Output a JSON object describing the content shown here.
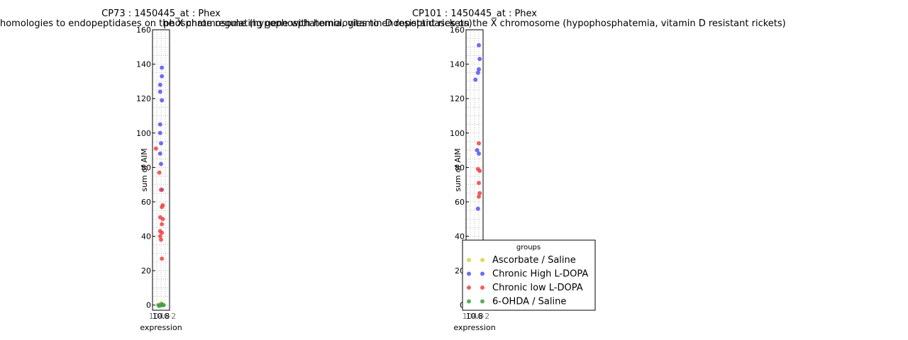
{
  "colors": {
    "Ascorbate / Saline": "#d6d640",
    "Chronic High L-DOPA": "#5555ee",
    "Chronic low L-DOPA": "#ee4444",
    "6-OHDA / Saline": "#44a044"
  },
  "legend": {
    "title": "groups",
    "entries": [
      "Ascorbate / Saline",
      "Chronic High L-DOPA",
      "Chronic low L-DOPA",
      "6-OHDA / Saline"
    ],
    "placement": "lower-right of second panel"
  },
  "chart_data": [
    {
      "type": "scatter",
      "title": "CP73 : 1450445_at : Phex",
      "subtitle": "phosphate regulating gene with homologies to endopeptidases on the X chromosome (hypophosphatemia, vitamin D resistant rickets)",
      "xlabel": "expression",
      "ylabel": "sum of AIM",
      "ylim": [
        -3,
        160
      ],
      "yticks": [
        0,
        20,
        40,
        60,
        80,
        100,
        120,
        140,
        160
      ],
      "xtick_text": "10.8",
      "xtick_text_overlap": "1046·2",
      "grid": true,
      "series": [
        {
          "name": "Chronic High L-DOPA",
          "points": [
            [
              0.55,
              138
            ],
            [
              0.55,
              133
            ],
            [
              0.45,
              128
            ],
            [
              0.45,
              124
            ],
            [
              0.55,
              119
            ],
            [
              0.45,
              105
            ],
            [
              0.45,
              100
            ],
            [
              0.5,
              94
            ],
            [
              0.45,
              88
            ],
            [
              0.5,
              82
            ],
            [
              0.55,
              67
            ]
          ]
        },
        {
          "name": "Chronic low L-DOPA",
          "points": [
            [
              0.2,
              91
            ],
            [
              0.4,
              77
            ],
            [
              0.5,
              67
            ],
            [
              0.6,
              58
            ],
            [
              0.55,
              57
            ],
            [
              0.45,
              51
            ],
            [
              0.6,
              50
            ],
            [
              0.55,
              47
            ],
            [
              0.45,
              43
            ],
            [
              0.55,
              42
            ],
            [
              0.45,
              40
            ],
            [
              0.5,
              38
            ],
            [
              0.55,
              27
            ]
          ]
        },
        {
          "name": "Ascorbate / Saline",
          "points": [
            [
              0.45,
              0
            ],
            [
              0.55,
              0
            ],
            [
              0.5,
              1
            ]
          ]
        },
        {
          "name": "6-OHDA / Saline",
          "points": [
            [
              0.35,
              0
            ],
            [
              0.5,
              0
            ],
            [
              0.6,
              0
            ],
            [
              0.4,
              -0.5
            ],
            [
              0.55,
              0.5
            ],
            [
              0.65,
              0
            ]
          ]
        }
      ]
    },
    {
      "type": "scatter",
      "title": "CP101 : 1450445_at : Phex",
      "subtitle": "phosphate regulating gene with homologies to endopeptidases on the X chromosome (hypophosphatemia, vitamin D resistant rickets)",
      "xlabel": "expression",
      "ylabel": "sum of AIM",
      "ylim": [
        -3,
        160
      ],
      "yticks": [
        0,
        20,
        40,
        60,
        80,
        100,
        120,
        140,
        160
      ],
      "xtick_text": "10.8",
      "xtick_text_overlap": "1046·2",
      "grid": true,
      "series": [
        {
          "name": "Chronic High L-DOPA",
          "points": [
            [
              0.75,
              151
            ],
            [
              0.8,
              143
            ],
            [
              0.75,
              137
            ],
            [
              0.7,
              135
            ],
            [
              0.55,
              131
            ],
            [
              0.65,
              90
            ],
            [
              0.75,
              88
            ],
            [
              0.7,
              56
            ]
          ]
        },
        {
          "name": "Chronic low L-DOPA",
          "points": [
            [
              0.75,
              94
            ],
            [
              0.7,
              79
            ],
            [
              0.8,
              78
            ],
            [
              0.75,
              71
            ],
            [
              0.8,
              65
            ],
            [
              0.75,
              63
            ]
          ]
        }
      ]
    }
  ]
}
